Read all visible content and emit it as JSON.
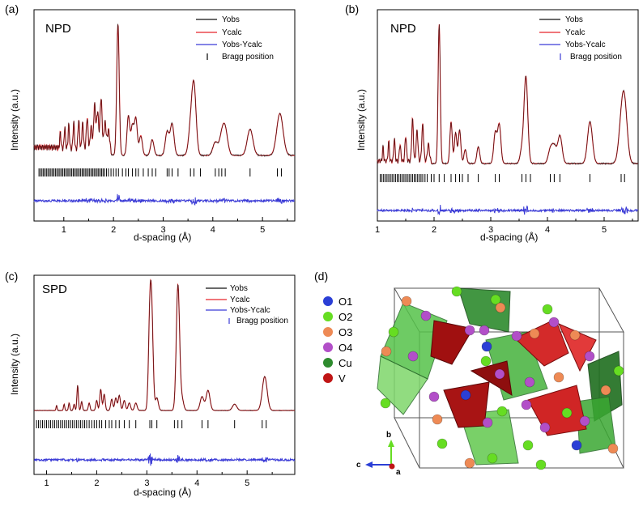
{
  "chart_data": [
    {
      "panel": "(a)",
      "type": "line",
      "inset_label": "NPD",
      "xlabel": "d-spacing (Å)",
      "ylabel": "Intensity (a.u.)",
      "xlim": [
        0.4,
        5.65
      ],
      "ylim": [
        0,
        1
      ],
      "xticks": [
        "1",
        "2",
        "3",
        "4",
        "5"
      ],
      "legend": [
        "Yobs",
        "Ycalc",
        "Yobs-Ycalc",
        "Bragg position"
      ],
      "peaks": [
        [
          0.93,
          0.12
        ],
        [
          1.02,
          0.16
        ],
        [
          1.1,
          0.18
        ],
        [
          1.2,
          0.2
        ],
        [
          1.3,
          0.22
        ],
        [
          1.38,
          0.2
        ],
        [
          1.47,
          0.25
        ],
        [
          1.55,
          0.18
        ],
        [
          1.62,
          0.35
        ],
        [
          1.68,
          0.3
        ],
        [
          1.75,
          0.4
        ],
        [
          1.83,
          0.22
        ],
        [
          1.9,
          0.16
        ],
        [
          2.09,
          1.0
        ],
        [
          2.3,
          0.3
        ],
        [
          2.38,
          0.22
        ],
        [
          2.45,
          0.28
        ],
        [
          2.55,
          0.15
        ],
        [
          2.78,
          0.12
        ],
        [
          3.08,
          0.18
        ],
        [
          3.18,
          0.24
        ],
        [
          3.55,
          0.18
        ],
        [
          3.62,
          0.52
        ],
        [
          4.05,
          0.1
        ],
        [
          4.18,
          0.13
        ],
        [
          4.25,
          0.18
        ],
        [
          4.75,
          0.2
        ],
        [
          5.35,
          0.32
        ]
      ],
      "bragg_positions": [
        0.5,
        0.53,
        0.56,
        0.59,
        0.62,
        0.65,
        0.68,
        0.71,
        0.74,
        0.77,
        0.8,
        0.83,
        0.86,
        0.89,
        0.92,
        0.95,
        0.98,
        1.01,
        1.04,
        1.07,
        1.1,
        1.13,
        1.16,
        1.19,
        1.22,
        1.25,
        1.28,
        1.31,
        1.34,
        1.37,
        1.4,
        1.43,
        1.46,
        1.49,
        1.52,
        1.55,
        1.58,
        1.61,
        1.64,
        1.67,
        1.7,
        1.73,
        1.76,
        1.79,
        1.82,
        1.86,
        1.9,
        1.95,
        2.0,
        2.05,
        2.1,
        2.18,
        2.25,
        2.3,
        2.38,
        2.45,
        2.5,
        2.6,
        2.7,
        2.78,
        2.85,
        3.08,
        3.12,
        3.18,
        3.3,
        3.55,
        3.62,
        3.75,
        4.05,
        4.12,
        4.18,
        4.25,
        4.75,
        5.3,
        5.38
      ]
    },
    {
      "panel": "(b)",
      "type": "line",
      "inset_label": "NPD",
      "xlabel": "d-spacing (Å)",
      "ylabel": "Intensity (a.u.)",
      "xlim": [
        1.0,
        5.6
      ],
      "ylim": [
        0,
        1
      ],
      "xticks": [
        "1",
        "2",
        "3",
        "4",
        "5"
      ],
      "legend": [
        "Yobs",
        "Ycalc",
        "Yobs-Ycalc",
        "Bragg position"
      ],
      "peaks": [
        [
          1.1,
          0.1
        ],
        [
          1.2,
          0.14
        ],
        [
          1.3,
          0.16
        ],
        [
          1.4,
          0.12
        ],
        [
          1.5,
          0.18
        ],
        [
          1.62,
          0.3
        ],
        [
          1.7,
          0.22
        ],
        [
          1.8,
          0.26
        ],
        [
          1.9,
          0.12
        ],
        [
          2.09,
          1.0
        ],
        [
          2.3,
          0.3
        ],
        [
          2.38,
          0.22
        ],
        [
          2.45,
          0.24
        ],
        [
          2.55,
          0.1
        ],
        [
          2.78,
          0.12
        ],
        [
          3.08,
          0.22
        ],
        [
          3.15,
          0.28
        ],
        [
          3.55,
          0.1
        ],
        [
          3.62,
          0.62
        ],
        [
          4.05,
          0.1
        ],
        [
          4.12,
          0.12
        ],
        [
          4.22,
          0.2
        ],
        [
          4.75,
          0.3
        ],
        [
          5.3,
          0.22
        ],
        [
          5.36,
          0.4
        ]
      ],
      "bragg_positions": [
        1.05,
        1.08,
        1.11,
        1.14,
        1.17,
        1.2,
        1.23,
        1.26,
        1.29,
        1.32,
        1.35,
        1.38,
        1.41,
        1.44,
        1.47,
        1.5,
        1.53,
        1.56,
        1.59,
        1.62,
        1.65,
        1.68,
        1.71,
        1.74,
        1.77,
        1.8,
        1.84,
        1.88,
        1.95,
        2.0,
        2.09,
        2.18,
        2.3,
        2.38,
        2.45,
        2.5,
        2.6,
        2.78,
        3.08,
        3.15,
        3.55,
        3.62,
        3.7,
        4.05,
        4.12,
        4.22,
        4.75,
        5.3,
        5.36
      ]
    },
    {
      "panel": "(c)",
      "type": "line",
      "inset_label": "SPD",
      "xlabel": "d-spacing (Å)",
      "ylabel": "Intensity (a.u.)",
      "xlim": [
        0.75,
        5.95
      ],
      "ylim": [
        0,
        1
      ],
      "xticks": [
        "1",
        "2",
        "3",
        "4",
        "5"
      ],
      "legend": [
        "Yobs",
        "Ycalc",
        "Yobs-Ycalc",
        "Bragg position"
      ],
      "peaks": [
        [
          1.2,
          0.04
        ],
        [
          1.35,
          0.05
        ],
        [
          1.45,
          0.06
        ],
        [
          1.55,
          0.05
        ],
        [
          1.62,
          0.2
        ],
        [
          1.7,
          0.07
        ],
        [
          1.85,
          0.06
        ],
        [
          2.0,
          0.08
        ],
        [
          2.08,
          0.17
        ],
        [
          2.15,
          0.13
        ],
        [
          2.3,
          0.09
        ],
        [
          2.38,
          0.1
        ],
        [
          2.45,
          0.12
        ],
        [
          2.55,
          0.08
        ],
        [
          2.65,
          0.06
        ],
        [
          2.78,
          0.06
        ],
        [
          3.06,
          0.7
        ],
        [
          3.1,
          0.65
        ],
        [
          3.2,
          0.1
        ],
        [
          3.62,
          1.0
        ],
        [
          3.7,
          0.09
        ],
        [
          4.1,
          0.11
        ],
        [
          4.22,
          0.16
        ],
        [
          4.75,
          0.05
        ],
        [
          5.35,
          0.27
        ]
      ],
      "bragg_positions": [
        0.8,
        0.84,
        0.88,
        0.92,
        0.96,
        1.0,
        1.04,
        1.08,
        1.12,
        1.16,
        1.2,
        1.24,
        1.28,
        1.32,
        1.36,
        1.4,
        1.44,
        1.48,
        1.52,
        1.56,
        1.6,
        1.64,
        1.68,
        1.72,
        1.76,
        1.8,
        1.85,
        1.9,
        1.95,
        2.0,
        2.05,
        2.1,
        2.18,
        2.25,
        2.3,
        2.38,
        2.45,
        2.55,
        2.65,
        2.78,
        3.06,
        3.1,
        3.2,
        3.55,
        3.62,
        3.7,
        4.1,
        4.22,
        4.75,
        5.3,
        5.38
      ]
    }
  ],
  "structure": {
    "panel": "(d)",
    "legend": [
      {
        "label": "O1",
        "color": "#2b3fd6"
      },
      {
        "label": "O2",
        "color": "#66dd22"
      },
      {
        "label": "O3",
        "color": "#ee8a55"
      },
      {
        "label": "O4",
        "color": "#b24fc8"
      },
      {
        "label": "Cu",
        "color": "#2e8b2e"
      },
      {
        "label": "V",
        "color": "#c01515"
      }
    ],
    "axes": {
      "b": "b",
      "c": "c",
      "a": "a"
    }
  },
  "colors": {
    "obs": "#111111",
    "calc": "#e8252a",
    "diff": "#3b3bd6",
    "bragg": "#000000"
  }
}
